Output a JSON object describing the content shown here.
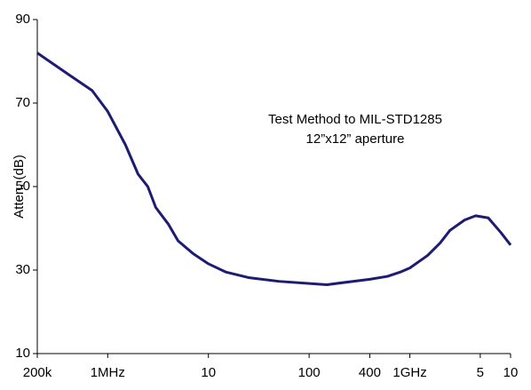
{
  "chart_data": {
    "type": "line",
    "y_label": "Atten. (dB)",
    "annotations": [
      "Test Method to MIL-STD1285",
      "12”x12” aperture"
    ],
    "log_x": true,
    "xlim": [
      200000,
      10000000000
    ],
    "xticks": [
      {
        "value": 200000,
        "label": "200k"
      },
      {
        "value": 1000000,
        "label": "1MHz"
      },
      {
        "value": 10000000,
        "label": "10"
      },
      {
        "value": 100000000,
        "label": "100"
      },
      {
        "value": 400000000,
        "label": "400"
      },
      {
        "value": 1000000000,
        "label": "1GHz"
      },
      {
        "value": 5000000000,
        "label": "5"
      },
      {
        "value": 10000000000,
        "label": "10"
      }
    ],
    "ylim": [
      10,
      90
    ],
    "yticks": [
      10,
      30,
      50,
      70,
      90
    ],
    "series": [
      {
        "color": "#1c1c72",
        "x": [
          200000,
          400000,
          700000,
          1000000,
          1500000,
          2000000,
          2500000,
          3000000,
          4000000,
          5000000,
          7000000,
          10000000,
          15000000,
          25000000,
          50000000,
          150000000,
          400000000,
          600000000,
          800000000,
          1000000000,
          1500000000,
          2000000000,
          2500000000,
          3500000000,
          4500000000,
          6000000000,
          8000000000,
          10000000000
        ],
        "values": [
          82,
          77,
          73,
          68,
          60,
          53,
          50,
          45,
          41,
          37,
          34,
          31.5,
          29.5,
          28.2,
          27.3,
          26.5,
          27.8,
          28.5,
          29.5,
          30.5,
          33.5,
          36.5,
          39.5,
          42,
          43,
          42.5,
          39,
          36
        ]
      }
    ]
  }
}
